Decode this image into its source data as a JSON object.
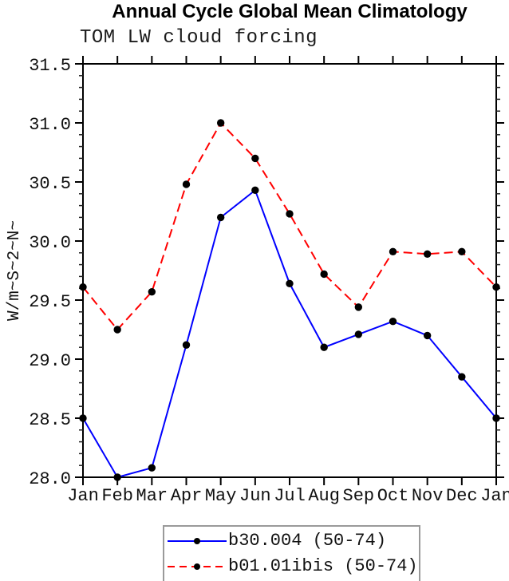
{
  "header": {
    "title": "Annual Cycle Global Mean Climatology",
    "subtitle": "TOM LW cloud forcing"
  },
  "chart_data": {
    "type": "line",
    "title": "Annual Cycle Global Mean Climatology",
    "subtitle": "TOM LW cloud forcing",
    "xlabel": "",
    "ylabel": "W/m~S~2~N~",
    "categories": [
      "Jan",
      "Feb",
      "Mar",
      "Apr",
      "May",
      "Jun",
      "Jul",
      "Aug",
      "Sep",
      "Oct",
      "Nov",
      "Dec",
      "Jan"
    ],
    "ylim": [
      28.0,
      31.5
    ],
    "ytick_labels": [
      "28.0",
      "28.5",
      "29.0",
      "29.5",
      "30.0",
      "30.5",
      "31.0",
      "31.5"
    ],
    "ytick_minor_step": 0.1,
    "grid": false,
    "legend_position": "bottom-center",
    "frame_color": "#000000",
    "series": [
      {
        "name": "b30.004 (50-74)",
        "color": "#0000ff",
        "line_style": "solid",
        "marker": "filled-circle",
        "marker_color": "#000000",
        "values": [
          28.5,
          28.0,
          28.08,
          29.12,
          30.2,
          30.43,
          29.64,
          29.1,
          29.21,
          29.32,
          29.2,
          28.85,
          28.5
        ]
      },
      {
        "name": "b01.01ibis (50-74)",
        "color": "#ff0000",
        "line_style": "dashed",
        "marker": "filled-circle",
        "marker_color": "#000000",
        "values": [
          29.61,
          29.25,
          29.57,
          30.48,
          31.0,
          30.7,
          30.23,
          29.72,
          29.44,
          29.91,
          29.89,
          29.91,
          29.61
        ]
      }
    ]
  }
}
